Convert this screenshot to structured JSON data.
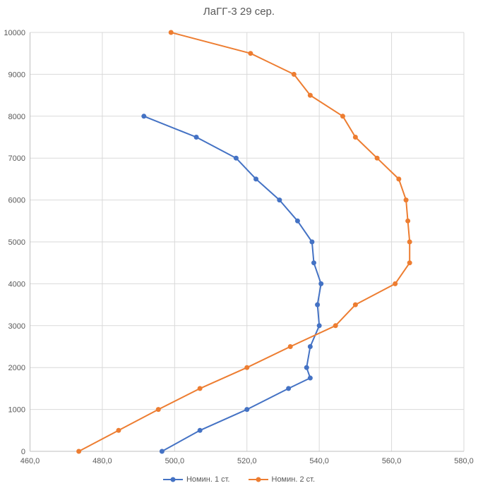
{
  "chart_data": {
    "type": "line",
    "title": "ЛаГГ-3 29 сер.",
    "point_format": "[x_speed, y_altitude]",
    "x_axis": {
      "min": 460,
      "max": 580,
      "step": 20,
      "tick_labels": [
        "460,0",
        "480,0",
        "500,0",
        "520,0",
        "540,0",
        "560,0",
        "580,0"
      ]
    },
    "y_axis": {
      "min": 0,
      "max": 10000,
      "step": 1000,
      "tick_labels": [
        "0",
        "1000",
        "2000",
        "3000",
        "4000",
        "5000",
        "6000",
        "7000",
        "8000",
        "9000",
        "10000"
      ]
    },
    "grid": true,
    "legend_position": "bottom",
    "series": [
      {
        "name": "Номин. 1 ст.",
        "color": "#4472C4",
        "marker": "circle",
        "points": [
          [
            496.5,
            0
          ],
          [
            507,
            500
          ],
          [
            520,
            1000
          ],
          [
            531.5,
            1500
          ],
          [
            537.5,
            1750
          ],
          [
            536.5,
            2000
          ],
          [
            537.5,
            2500
          ],
          [
            540,
            3000
          ],
          [
            539.5,
            3500
          ],
          [
            540.5,
            4000
          ],
          [
            538.5,
            4500
          ],
          [
            538,
            5000
          ],
          [
            534,
            5500
          ],
          [
            529,
            6000
          ],
          [
            522.5,
            6500
          ],
          [
            517,
            7000
          ],
          [
            506,
            7500
          ],
          [
            491.5,
            8000
          ]
        ]
      },
      {
        "name": "Номин. 2 ст.",
        "color": "#ED7D31",
        "marker": "circle",
        "points": [
          [
            473.5,
            0
          ],
          [
            484.5,
            500
          ],
          [
            495.5,
            1000
          ],
          [
            507,
            1500
          ],
          [
            520,
            2000
          ],
          [
            532,
            2500
          ],
          [
            544.5,
            3000
          ],
          [
            550,
            3500
          ],
          [
            561,
            4000
          ],
          [
            565,
            4500
          ],
          [
            565,
            5000
          ],
          [
            564.5,
            5500
          ],
          [
            564,
            6000
          ],
          [
            562,
            6500
          ],
          [
            556,
            7000
          ],
          [
            550,
            7500
          ],
          [
            546.5,
            8000
          ],
          [
            537.5,
            8500
          ],
          [
            533,
            9000
          ],
          [
            521,
            9500
          ],
          [
            499,
            10000
          ]
        ]
      }
    ]
  },
  "styles": {
    "background": "#FFFFFF",
    "grid_color": "#D9D9D9",
    "axis_color": "#BFBFBF",
    "text_color": "#595959"
  }
}
